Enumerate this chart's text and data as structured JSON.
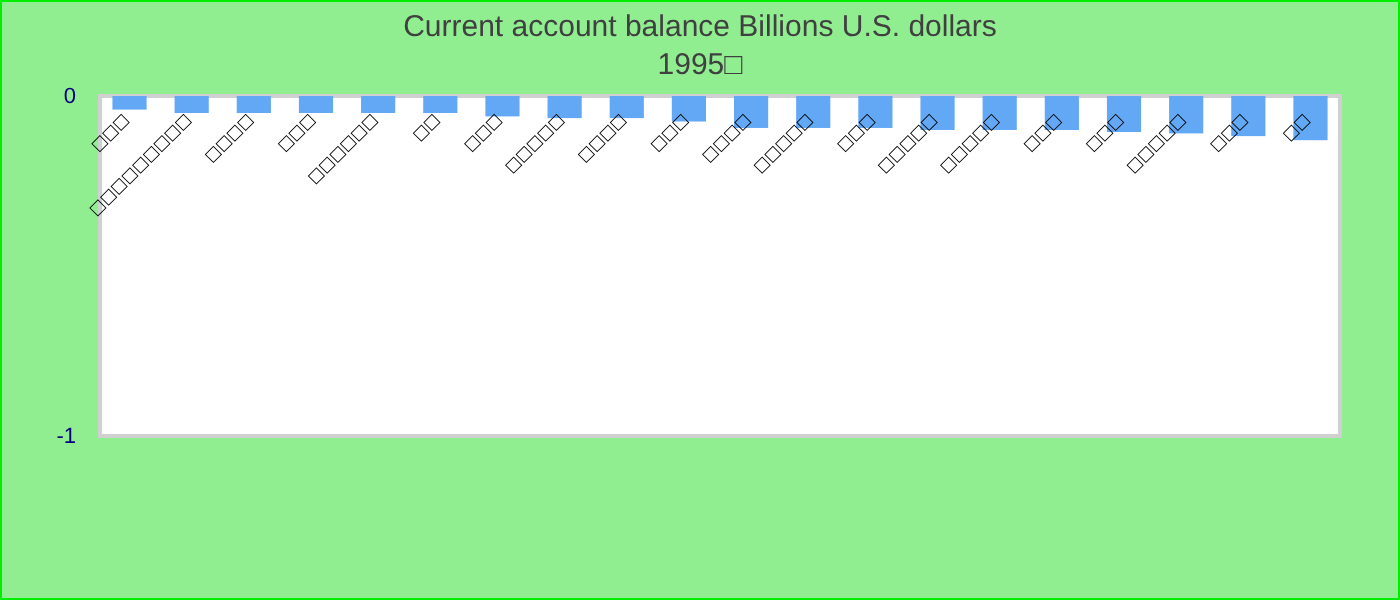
{
  "chart_data": {
    "type": "bar",
    "title": "Current account balance Billions U.S. dollars",
    "subtitle": "1995□",
    "categories": [
      "□□□",
      "□□□□□□□□□",
      "□□□□",
      "□□□",
      "□□□□□□",
      "□□",
      "□□□",
      "□□□□□",
      "□□□□",
      "□□□",
      "□□□□",
      "□□□□□",
      "□□□",
      "□□□□□",
      "□□□□□",
      "□□□",
      "□□□",
      "□□□□□",
      "□□□",
      "□□"
    ],
    "values": [
      -0.04,
      -0.05,
      -0.05,
      -0.05,
      -0.05,
      -0.05,
      -0.06,
      -0.065,
      -0.065,
      -0.075,
      -0.094,
      -0.094,
      -0.094,
      -0.1,
      -0.1,
      -0.1,
      -0.106,
      -0.11,
      -0.118,
      -0.13
    ],
    "color": "#63a8f5",
    "ylim": [
      -1,
      0
    ],
    "yticks": [
      -1,
      0
    ]
  }
}
